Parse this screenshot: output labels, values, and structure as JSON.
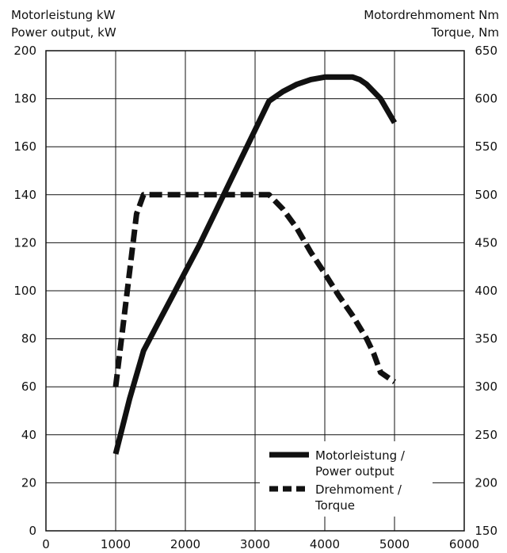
{
  "chart_data": {
    "type": "line",
    "left_axis_title": [
      "Motorleistung kW",
      "Power output, kW"
    ],
    "right_axis_title": [
      "Motordrehmoment Nm",
      "Torque, Nm"
    ],
    "x_ticks": [
      "0",
      "1000",
      "2000",
      "3000",
      "4000",
      "5000",
      "6000"
    ],
    "y_left_ticks": [
      "0",
      "20",
      "40",
      "60",
      "80",
      "100",
      "120",
      "140",
      "160",
      "180",
      "200"
    ],
    "y_right_ticks": [
      "150",
      "200",
      "250",
      "300",
      "350",
      "400",
      "450",
      "500",
      "550",
      "600",
      "650"
    ],
    "xlim": [
      0,
      6000
    ],
    "ylim_left": [
      0,
      200
    ],
    "ylim_right": [
      150,
      650
    ],
    "grid": true,
    "legend_position": "bottom-right",
    "series": [
      {
        "name": [
          "Motorleistung /",
          "Power output"
        ],
        "axis": "left",
        "style": "solid",
        "x": [
          1000,
          1200,
          1400,
          1600,
          1800,
          2000,
          2200,
          2400,
          2600,
          2800,
          3000,
          3200,
          3400,
          3600,
          3800,
          4000,
          4200,
          4400,
          4500,
          4600,
          4800,
          5000
        ],
        "y": [
          32,
          55,
          75,
          86,
          97,
          108,
          119,
          131,
          143,
          155,
          167,
          179,
          183,
          186,
          188,
          189,
          189,
          189,
          188,
          186,
          180,
          170
        ]
      },
      {
        "name": [
          "Drehmoment /",
          "Torque"
        ],
        "axis": "right",
        "style": "dashed",
        "x": [
          1000,
          1100,
          1200,
          1300,
          1400,
          1500,
          2000,
          2500,
          3000,
          3200,
          3400,
          3600,
          3800,
          4000,
          4200,
          4400,
          4600,
          4700,
          4800,
          5000
        ],
        "y": [
          300,
          360,
          420,
          480,
          500,
          500,
          500,
          500,
          500,
          500,
          485,
          465,
          440,
          418,
          395,
          374,
          350,
          335,
          315,
          305
        ]
      }
    ]
  }
}
